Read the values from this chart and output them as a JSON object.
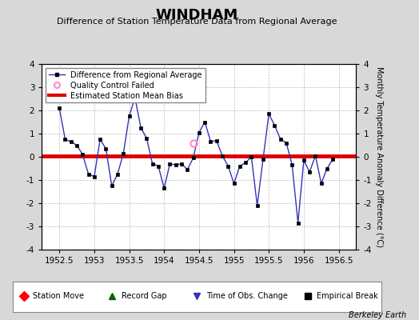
{
  "title": "WINDHAM",
  "subtitle": "Difference of Station Temperature Data from Regional Average",
  "ylabel_right": "Monthly Temperature Anomaly Difference (°C)",
  "xlim": [
    1952.25,
    1956.75
  ],
  "ylim": [
    -4,
    4
  ],
  "xticks": [
    1952.5,
    1953.0,
    1953.5,
    1954.0,
    1954.5,
    1955.0,
    1955.5,
    1956.0,
    1956.5
  ],
  "yticks": [
    -4,
    -3,
    -2,
    -1,
    0,
    1,
    2,
    3,
    4
  ],
  "bias_line": 0.05,
  "background_color": "#d8d8d8",
  "plot_bg_color": "#ffffff",
  "grid_color": "#bbbbbb",
  "line_color": "#3333bb",
  "bias_color": "#dd0000",
  "marker_color": "#000000",
  "qc_fail_color": "#ff88cc",
  "watermark": "Berkeley Earth",
  "x_data": [
    1952.5,
    1952.583,
    1952.667,
    1952.75,
    1952.833,
    1952.917,
    1953.0,
    1953.083,
    1953.167,
    1953.25,
    1953.333,
    1953.417,
    1953.5,
    1953.583,
    1953.667,
    1953.75,
    1953.833,
    1953.917,
    1954.0,
    1954.083,
    1954.167,
    1954.25,
    1954.333,
    1954.417,
    1954.5,
    1954.583,
    1954.667,
    1954.75,
    1954.833,
    1954.917,
    1955.0,
    1955.083,
    1955.167,
    1955.25,
    1955.333,
    1955.417,
    1955.5,
    1955.583,
    1955.667,
    1955.75,
    1955.833,
    1955.917,
    1956.0,
    1956.083,
    1956.167,
    1956.25,
    1956.333,
    1956.417
  ],
  "y_data": [
    2.1,
    0.75,
    0.65,
    0.5,
    0.1,
    -0.75,
    -0.85,
    0.75,
    0.35,
    -1.25,
    -0.75,
    0.15,
    1.75,
    2.55,
    1.25,
    0.8,
    -0.3,
    -0.4,
    -1.35,
    -0.3,
    -0.35,
    -0.3,
    -0.55,
    -0.05,
    1.05,
    1.5,
    0.65,
    0.7,
    0.05,
    -0.4,
    -1.15,
    -0.4,
    -0.25,
    0.0,
    -2.1,
    -0.1,
    1.85,
    1.35,
    0.75,
    0.6,
    -0.35,
    -2.85,
    -0.15,
    -0.65,
    0.05,
    -1.15,
    -0.5,
    -0.1
  ],
  "qc_fail_x": [
    1954.417
  ],
  "qc_fail_y": [
    0.6
  ],
  "title_fontsize": 13,
  "subtitle_fontsize": 8,
  "tick_fontsize": 7.5,
  "legend_fontsize": 7,
  "watermark_fontsize": 7
}
